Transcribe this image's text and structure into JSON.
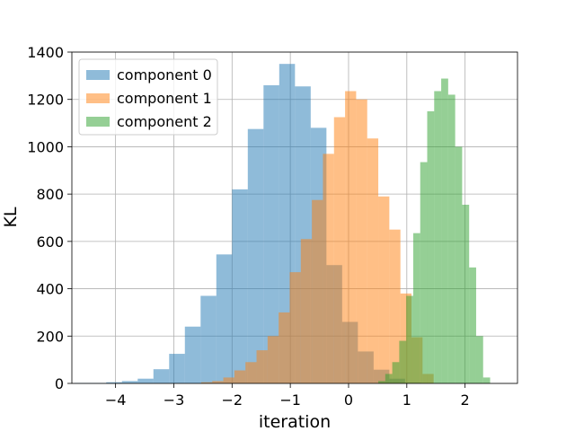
{
  "chart_data": {
    "type": "histogram",
    "title": "",
    "xlabel": "iteration",
    "ylabel": "KL",
    "xlim": [
      -4.75,
      2.9
    ],
    "ylim": [
      0,
      1400
    ],
    "xticks": [
      -4,
      -3,
      -2,
      -1,
      0,
      1,
      2
    ],
    "xtick_labels": [
      "−4",
      "−3",
      "−2",
      "−1",
      "0",
      "1",
      "2"
    ],
    "yticks": [
      0,
      200,
      400,
      600,
      800,
      1000,
      1200,
      1400
    ],
    "ytick_labels": [
      "0",
      "200",
      "400",
      "600",
      "800",
      "1000",
      "1200",
      "1400"
    ],
    "grid": true,
    "legend_position": "upper-left",
    "alpha": 0.5,
    "series": [
      {
        "name": "component 0",
        "color": "#1f77b4",
        "edges": [
          -4.7,
          -4.43,
          -4.16,
          -3.89,
          -3.62,
          -3.35,
          -3.08,
          -2.81,
          -2.54,
          -2.27,
          -2.0,
          -1.73,
          -1.46,
          -1.19,
          -0.92,
          -0.65,
          -0.38,
          -0.11,
          0.16,
          0.43,
          0.7,
          0.97,
          1.24
        ],
        "counts": [
          2,
          2,
          5,
          10,
          20,
          60,
          125,
          240,
          370,
          545,
          820,
          1075,
          1260,
          1350,
          1255,
          1080,
          500,
          260,
          135,
          58,
          20,
          3
        ]
      },
      {
        "name": "component 1",
        "color": "#ff7f0e",
        "edges": [
          -2.53,
          -2.34,
          -2.15,
          -1.96,
          -1.77,
          -1.58,
          -1.39,
          -1.2,
          -1.01,
          -0.82,
          -0.63,
          -0.44,
          -0.25,
          -0.06,
          0.13,
          0.32,
          0.51,
          0.7,
          0.89,
          1.08,
          1.27,
          1.46
        ],
        "counts": [
          5,
          10,
          25,
          55,
          90,
          140,
          200,
          300,
          470,
          610,
          775,
          970,
          1125,
          1235,
          1200,
          1035,
          790,
          650,
          380,
          195,
          40
        ]
      },
      {
        "name": "component 2",
        "color": "#2ca02c",
        "edges": [
          0.51,
          0.63,
          0.75,
          0.87,
          0.99,
          1.11,
          1.23,
          1.35,
          1.47,
          1.59,
          1.71,
          1.83,
          1.95,
          2.07,
          2.19,
          2.31,
          2.43
        ],
        "counts": [
          10,
          40,
          90,
          180,
          370,
          635,
          935,
          1150,
          1235,
          1288,
          1220,
          1000,
          755,
          490,
          200,
          25
        ]
      }
    ]
  }
}
